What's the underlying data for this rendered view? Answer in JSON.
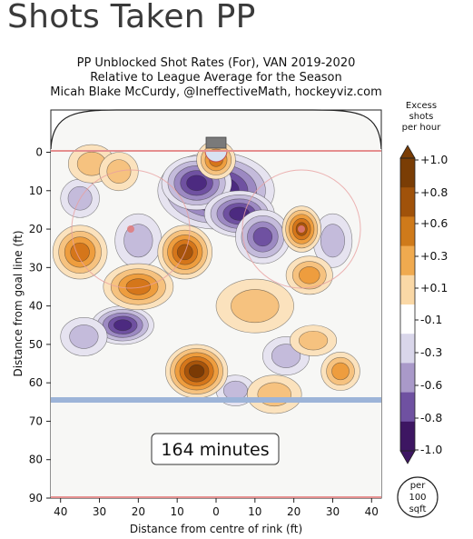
{
  "page": {
    "title": "Shots Taken PP"
  },
  "chart_data": {
    "type": "heatmap",
    "title_lines": [
      "PP Unblocked Shot Rates (For), VAN 2019-2020",
      "Relative to League Average for the Season",
      "Micah Blake McCurdy, @IneffectiveMath, hockeyviz.com"
    ],
    "xlabel": "Distance from centre of rink (ft)",
    "ylabel": "Distance from goal line (ft)",
    "xlim": [
      -42.5,
      42.5
    ],
    "ylim": [
      -11,
      90
    ],
    "xticks": [
      "40",
      "30",
      "20",
      "10",
      "0",
      "10",
      "20",
      "30",
      "40"
    ],
    "xtick_values": [
      -40,
      -30,
      -20,
      -10,
      0,
      10,
      20,
      30,
      40
    ],
    "yticks": [
      "0",
      "10",
      "20",
      "30",
      "40",
      "50",
      "60",
      "70",
      "80",
      "90"
    ],
    "ytick_values": [
      0,
      10,
      20,
      30,
      40,
      50,
      60,
      70,
      80,
      90
    ],
    "annotation": "164 minutes",
    "colorbar": {
      "title_lines": [
        "Excess",
        "shots",
        "per hour"
      ],
      "ticks": [
        "+1.0",
        "+0.8",
        "+0.6",
        "+0.3",
        "+0.1",
        "-0.1",
        "-0.3",
        "-0.6",
        "-0.8",
        "-1.0"
      ],
      "colors": [
        "#7a3d05",
        "#a0520a",
        "#cf7a1a",
        "#f0aa4f",
        "#fad8a6",
        "#ffffff",
        "#d9d6ea",
        "#a999c9",
        "#6f51a1",
        "#3d1662"
      ]
    },
    "unit_badge": [
      "per",
      "100",
      "sqft"
    ],
    "blobs": [
      {
        "x": 0,
        "y": 10,
        "rx": 13,
        "ry": 8,
        "level": -1.0
      },
      {
        "x": -5,
        "y": 8,
        "rx": 7,
        "ry": 5,
        "level": -0.9
      },
      {
        "x": 6,
        "y": 16,
        "rx": 7,
        "ry": 4,
        "level": -0.8
      },
      {
        "x": 12,
        "y": 22,
        "rx": 5,
        "ry": 5,
        "level": -0.6
      },
      {
        "x": -20,
        "y": 23,
        "rx": 4,
        "ry": 5,
        "level": -0.4
      },
      {
        "x": -35,
        "y": 12,
        "rx": 3,
        "ry": 3,
        "level": -0.2
      },
      {
        "x": -24,
        "y": 45,
        "rx": 6,
        "ry": 3,
        "level": -0.9
      },
      {
        "x": -34,
        "y": 48,
        "rx": 4,
        "ry": 3,
        "level": -0.3
      },
      {
        "x": 30,
        "y": 23,
        "rx": 3,
        "ry": 5,
        "level": -0.3
      },
      {
        "x": 18,
        "y": 53,
        "rx": 4,
        "ry": 3,
        "level": -0.2
      },
      {
        "x": 5,
        "y": 62,
        "rx": 3,
        "ry": 2,
        "level": -0.2
      },
      {
        "x": -32,
        "y": 3,
        "rx": 4,
        "ry": 3,
        "level": 0.3
      },
      {
        "x": -25,
        "y": 5,
        "rx": 3,
        "ry": 3,
        "level": 0.4
      },
      {
        "x": 0,
        "y": 2,
        "rx": 3,
        "ry": 3,
        "level": 0.6
      },
      {
        "x": -8,
        "y": 26,
        "rx": 5,
        "ry": 5,
        "level": 0.9
      },
      {
        "x": -20,
        "y": 35,
        "rx": 7,
        "ry": 4,
        "level": 0.7
      },
      {
        "x": -35,
        "y": 26,
        "rx": 5,
        "ry": 5,
        "level": 0.6
      },
      {
        "x": 22,
        "y": 20,
        "rx": 3,
        "ry": 4,
        "level": 0.9
      },
      {
        "x": 24,
        "y": 32,
        "rx": 4,
        "ry": 3,
        "level": 0.5
      },
      {
        "x": 10,
        "y": 40,
        "rx": 8,
        "ry": 5,
        "level": 0.4
      },
      {
        "x": -5,
        "y": 57,
        "rx": 6,
        "ry": 5,
        "level": 1.0
      },
      {
        "x": 32,
        "y": 57,
        "rx": 3,
        "ry": 3,
        "level": 0.5
      },
      {
        "x": 25,
        "y": 49,
        "rx": 4,
        "ry": 2,
        "level": 0.2
      },
      {
        "x": 15,
        "y": 63,
        "rx": 5,
        "ry": 3,
        "level": 0.2
      }
    ]
  }
}
